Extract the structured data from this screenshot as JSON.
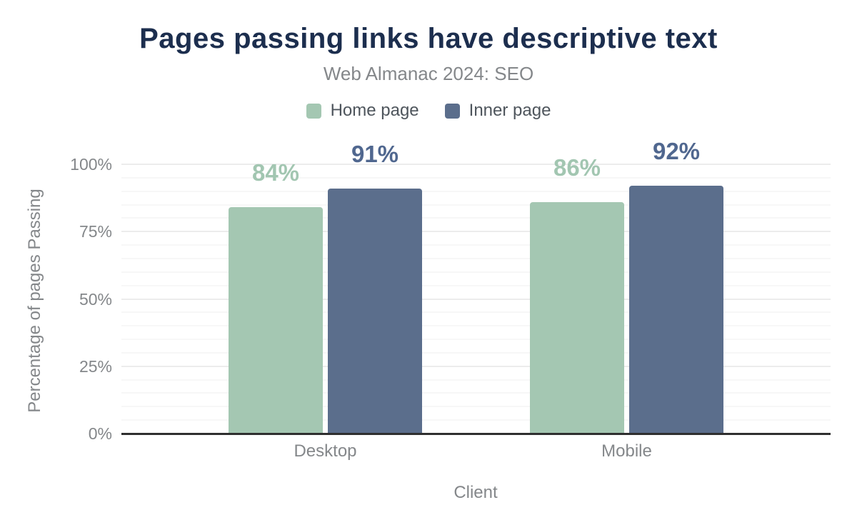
{
  "colors": {
    "title": "#1c2e4e",
    "axis_text": "#84878a",
    "legend_text": "#4e555c",
    "baseline": "#2f2f2f",
    "grid_minor": "#f7f7f7",
    "grid_major": "#ececec"
  },
  "chart_data": {
    "type": "bar",
    "title": "Pages passing links have descriptive text",
    "subtitle": "Web Almanac 2024: SEO",
    "xlabel": "Client",
    "ylabel": "Percentage of pages Passing",
    "categories": [
      "Desktop",
      "Mobile"
    ],
    "series": [
      {
        "name": "Home page",
        "values": [
          84,
          86
        ],
        "labels": [
          "84%",
          "86%"
        ],
        "color": "#a4c7b2",
        "label_color": "#a2c6b1"
      },
      {
        "name": "Inner page",
        "values": [
          91,
          92
        ],
        "labels": [
          "91%",
          "92%"
        ],
        "color": "#5b6e8c",
        "label_color": "#50678f"
      }
    ],
    "ylim": [
      0,
      100
    ],
    "yticks": [
      0,
      25,
      50,
      75,
      100
    ],
    "ytick_suffix": "%",
    "grid": {
      "minor_step": 5,
      "major_step": 25,
      "orientation": "horizontal"
    },
    "legend_position": "top"
  }
}
